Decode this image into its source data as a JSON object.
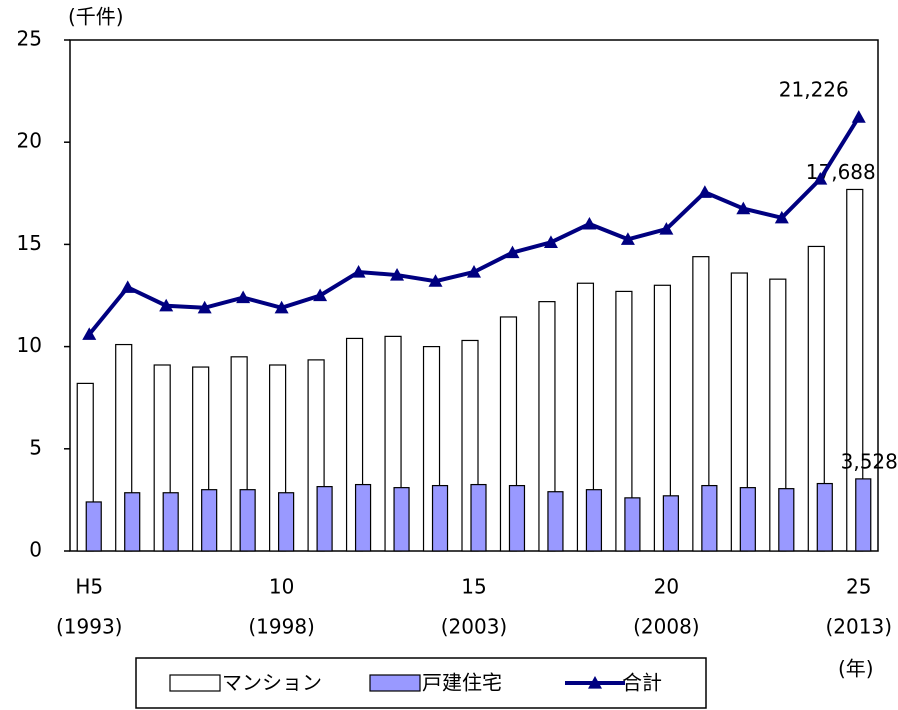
{
  "chart_data": {
    "type": "bar_line",
    "y_unit_label": "(千件)",
    "x_unit_label": "(年)",
    "categories": [
      "H5",
      null,
      null,
      null,
      null,
      "10",
      null,
      null,
      null,
      null,
      "15",
      null,
      null,
      null,
      null,
      "20",
      null,
      null,
      null,
      null,
      "25"
    ],
    "category_years": [
      "(1993)",
      null,
      null,
      null,
      null,
      "(1998)",
      null,
      null,
      null,
      null,
      "(2003)",
      null,
      null,
      null,
      null,
      "(2008)",
      null,
      null,
      null,
      null,
      "(2013)"
    ],
    "series": [
      {
        "name": "マンション",
        "type": "bar",
        "color": "#ffffff",
        "stroke": "#000000",
        "values": [
          8.2,
          10.1,
          9.1,
          9.0,
          9.5,
          9.1,
          9.35,
          10.4,
          10.5,
          10.0,
          10.3,
          11.45,
          12.2,
          13.1,
          12.7,
          13.0,
          14.4,
          13.6,
          13.3,
          14.9,
          17.688
        ],
        "value_labels": [
          null,
          null,
          null,
          null,
          null,
          null,
          null,
          null,
          null,
          null,
          null,
          null,
          null,
          null,
          null,
          null,
          null,
          null,
          null,
          null,
          "17,688"
        ]
      },
      {
        "name": "戸建住宅",
        "type": "bar",
        "color": "#9999ff",
        "stroke": "#000000",
        "values": [
          2.4,
          2.85,
          2.85,
          3.0,
          3.0,
          2.85,
          3.15,
          3.25,
          3.1,
          3.2,
          3.25,
          3.2,
          2.9,
          3.0,
          2.6,
          2.7,
          3.2,
          3.1,
          3.05,
          3.3,
          3.528
        ],
        "value_labels": [
          null,
          null,
          null,
          null,
          null,
          null,
          null,
          null,
          null,
          null,
          null,
          null,
          null,
          null,
          null,
          null,
          null,
          null,
          null,
          null,
          "3,528"
        ]
      },
      {
        "name": "合計",
        "type": "line",
        "color": "#000080",
        "values": [
          10.6,
          12.9,
          12.0,
          11.9,
          12.4,
          11.9,
          12.5,
          13.65,
          13.5,
          13.2,
          13.65,
          14.6,
          15.1,
          16.0,
          15.25,
          15.75,
          17.55,
          16.75,
          16.3,
          18.2,
          21.226
        ],
        "value_labels": [
          null,
          null,
          null,
          null,
          null,
          null,
          null,
          null,
          null,
          null,
          null,
          null,
          null,
          null,
          null,
          null,
          null,
          null,
          null,
          null,
          "21,226"
        ]
      }
    ],
    "ylim": [
      0,
      25
    ],
    "yticks": [
      0,
      5,
      10,
      15,
      20,
      25
    ],
    "grid": false
  }
}
